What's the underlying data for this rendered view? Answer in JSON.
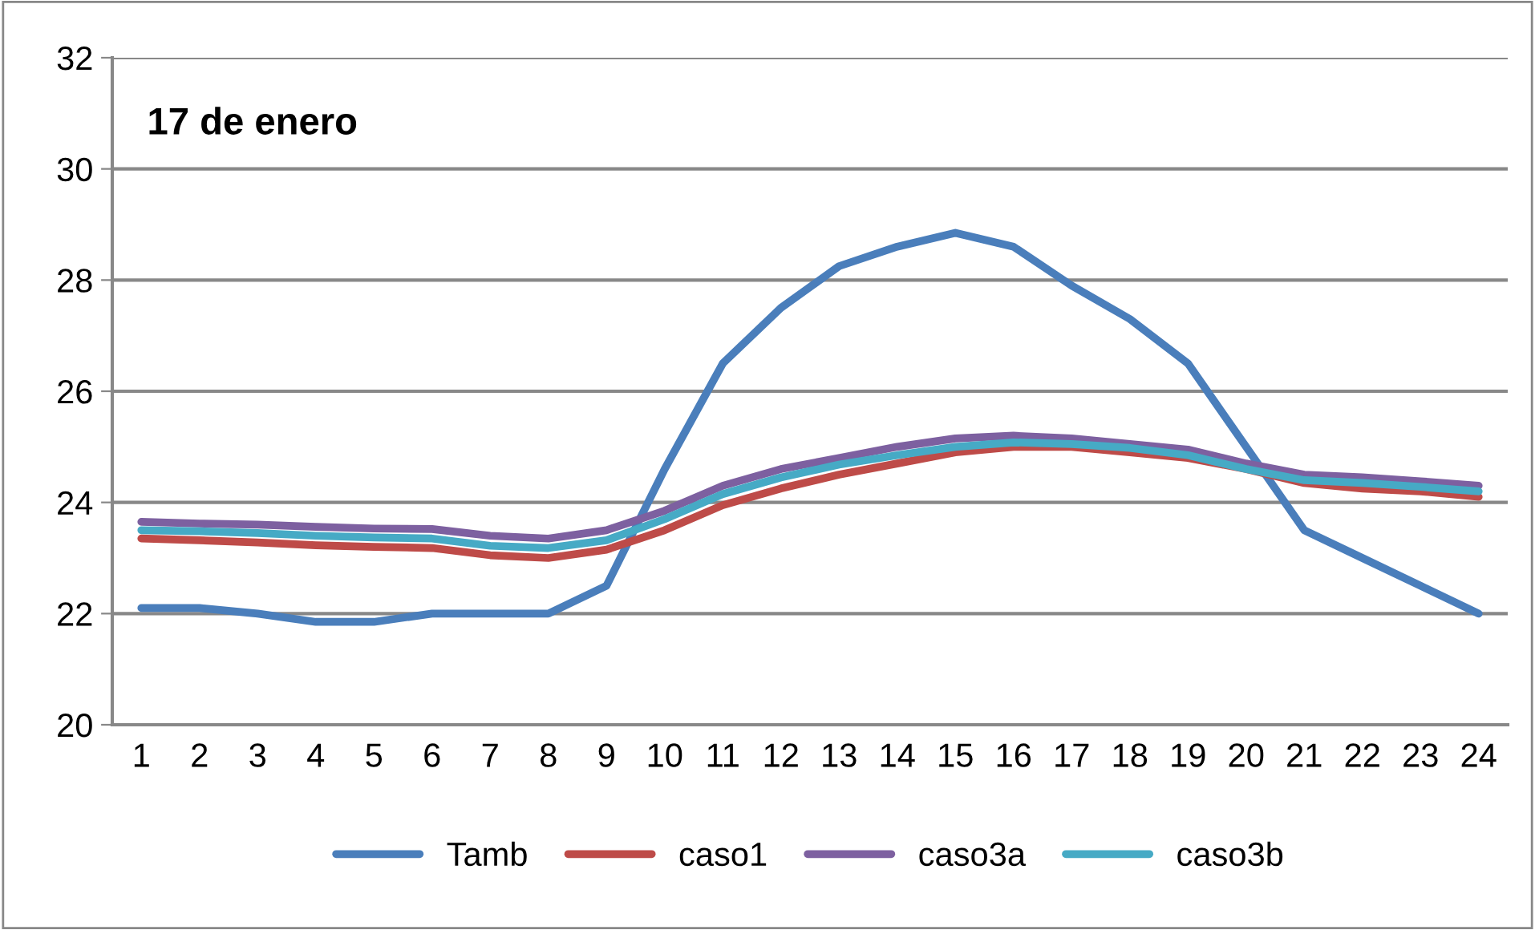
{
  "chart_data": {
    "type": "line",
    "title": "17 de enero",
    "categories": [
      "1",
      "2",
      "3",
      "4",
      "5",
      "6",
      "7",
      "8",
      "9",
      "10",
      "11",
      "12",
      "13",
      "14",
      "15",
      "16",
      "17",
      "18",
      "19",
      "20",
      "21",
      "22",
      "23",
      "24"
    ],
    "series": [
      {
        "name": "Tamb",
        "color": "#4a7ebb",
        "values": [
          22.1,
          22.1,
          22.0,
          21.85,
          21.85,
          22.0,
          22.0,
          22.0,
          22.5,
          24.6,
          26.5,
          27.5,
          28.25,
          28.6,
          28.85,
          28.6,
          27.9,
          27.3,
          26.5,
          25.0,
          23.5,
          23.0,
          22.5,
          22.0
        ]
      },
      {
        "name": "caso1",
        "color": "#be4b48",
        "values": [
          23.35,
          23.32,
          23.28,
          23.23,
          23.2,
          23.18,
          23.05,
          23.0,
          23.15,
          23.5,
          23.95,
          24.25,
          24.5,
          24.7,
          24.9,
          25.0,
          25.0,
          24.9,
          24.8,
          24.6,
          24.35,
          24.25,
          24.2,
          24.1
        ]
      },
      {
        "name": "caso3a",
        "color": "#7d60a0",
        "values": [
          23.65,
          23.62,
          23.6,
          23.56,
          23.53,
          23.52,
          23.4,
          23.35,
          23.5,
          23.85,
          24.3,
          24.6,
          24.8,
          25.0,
          25.15,
          25.2,
          25.15,
          25.05,
          24.95,
          24.7,
          24.5,
          24.45,
          24.38,
          24.3
        ]
      },
      {
        "name": "caso3b",
        "color": "#46aac5",
        "values": [
          23.5,
          23.48,
          23.45,
          23.4,
          23.37,
          23.35,
          23.22,
          23.18,
          23.32,
          23.7,
          24.15,
          24.45,
          24.68,
          24.85,
          25.0,
          25.08,
          25.05,
          24.98,
          24.85,
          24.6,
          24.4,
          24.35,
          24.28,
          24.2
        ]
      }
    ],
    "ylim": [
      20,
      32
    ],
    "yticks": [
      20,
      22,
      24,
      26,
      28,
      30,
      32
    ],
    "grid": "y",
    "legend": "bottom",
    "marker": "none",
    "line_style": "solid"
  }
}
